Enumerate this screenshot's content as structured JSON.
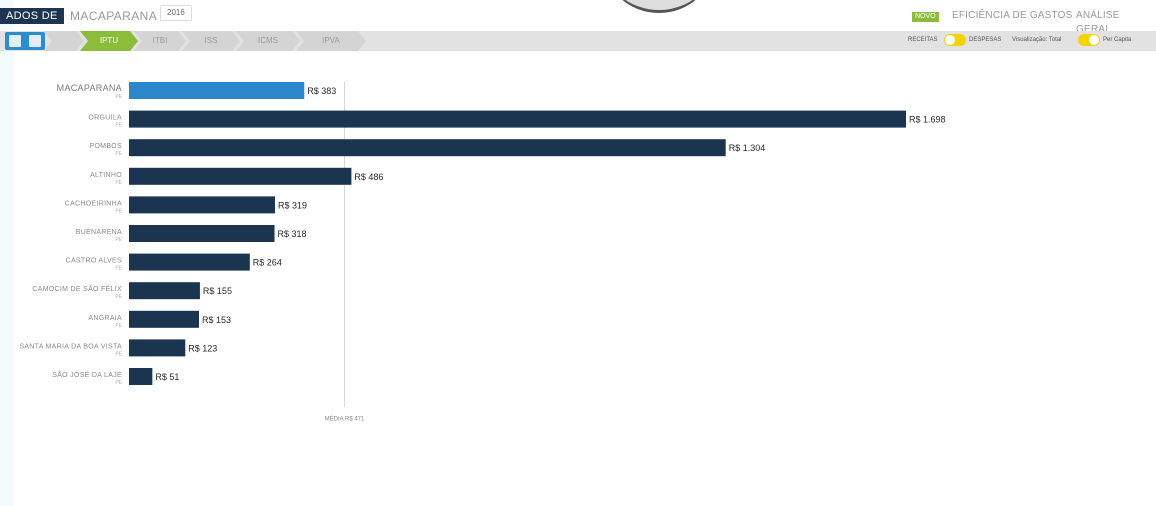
{
  "header": {
    "brand": "ADOS DE",
    "city": "MACAPARANA",
    "year": "2016",
    "new_badge": "NOVO",
    "nav": [
      "EFICIÊNCIA DE GASTOS",
      "ANÁLISE GERAL"
    ]
  },
  "indicators": {
    "items": [
      "IPTU",
      "ITBI",
      "ISS",
      "ICMS",
      "IPVA"
    ],
    "active": "IPTU"
  },
  "toggles": {
    "receitas_label": "RECEITAS",
    "despesas_label": "DESPESAS",
    "visualizacao_label": "Visualização: Total",
    "per_capita_label": "Per Capita"
  },
  "colors": {
    "highlight": "#2b86cc",
    "bar": "#1b3550",
    "accent": "#8bbd3b",
    "strip": "#e2e2e2",
    "toggle": "#f4d400"
  },
  "chart_data": {
    "type": "bar",
    "orientation": "horizontal",
    "highlight": "MACAPARANA",
    "categories": [
      "MACAPARANA",
      "ORGUILA",
      "POMBOS",
      "ALTINHO",
      "CACHOEIRINHA",
      "BUENARENA",
      "CASTRO ALVES",
      "CAMOCIM DE SÃO FÉLIX",
      "ANGRAIA",
      "SANTA MARIA DA BOA VISTA",
      "SÃO JOSÉ DA LAJE"
    ],
    "values": [
      383,
      1698,
      1304,
      486,
      319,
      318,
      264,
      155,
      153,
      123,
      51
    ],
    "value_labels": [
      "R$ 383",
      "R$ 1.698",
      "R$ 1.304",
      "R$ 486",
      "R$ 319",
      "R$ 318",
      "R$ 264",
      "R$ 155",
      "R$ 153",
      "R$ 123",
      "R$ 51"
    ],
    "sublabels": [
      "PE",
      "PE",
      "PE",
      "PE",
      "PE",
      "PE",
      "PE",
      "PE",
      "PE",
      "PE",
      "PE"
    ],
    "average_value": 471,
    "average_label": "MÉDIA R$ 471",
    "xlim": [
      0,
      1698
    ]
  }
}
